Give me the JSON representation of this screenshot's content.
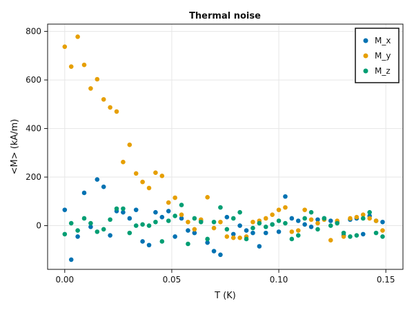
{
  "chart_data": {
    "type": "scatter",
    "title": "Thermal noise",
    "xlabel": "T (K)",
    "ylabel": "<M> (kA/m)",
    "xlim": [
      -0.008,
      0.158
    ],
    "ylim": [
      -180,
      830
    ],
    "xticks": [
      0.0,
      0.05,
      0.1,
      0.15
    ],
    "xtick_labels": [
      "0.00",
      "0.05",
      "0.10",
      "0.15"
    ],
    "yticks": [
      0,
      200,
      400,
      600,
      800
    ],
    "ytick_labels": [
      "0",
      "200",
      "400",
      "600",
      "800"
    ],
    "grid": true,
    "legend_position": "top-right",
    "x": [
      0.0,
      0.00303,
      0.00606,
      0.00909,
      0.01212,
      0.01515,
      0.01818,
      0.02121,
      0.02424,
      0.02727,
      0.0303,
      0.03333,
      0.03636,
      0.03939,
      0.04242,
      0.04545,
      0.04848,
      0.05152,
      0.05455,
      0.05758,
      0.06061,
      0.06364,
      0.06667,
      0.0697,
      0.07273,
      0.07576,
      0.07879,
      0.08182,
      0.08485,
      0.08788,
      0.09091,
      0.09394,
      0.09697,
      0.1,
      0.10303,
      0.10606,
      0.10909,
      0.11212,
      0.11515,
      0.11818,
      0.12121,
      0.12424,
      0.12727,
      0.1303,
      0.13333,
      0.13636,
      0.13939,
      0.14242,
      0.14545,
      0.14848
    ],
    "series": [
      {
        "name": "M_x",
        "color": "#0072b2",
        "values": [
          65,
          -140,
          -45,
          135,
          -5,
          190,
          160,
          -40,
          60,
          55,
          30,
          65,
          -65,
          -80,
          55,
          35,
          60,
          -45,
          30,
          -20,
          -30,
          20,
          -70,
          -105,
          -120,
          35,
          -35,
          0,
          -20,
          -30,
          -85,
          -30,
          5,
          -25,
          120,
          30,
          20,
          5,
          -5,
          25,
          30,
          20,
          15,
          -40,
          25,
          30,
          -35,
          40,
          20,
          15
        ]
      },
      {
        "name": "M_y",
        "color": "#e69f00",
        "values": [
          737,
          655,
          778,
          662,
          565,
          603,
          520,
          487,
          470,
          262,
          333,
          215,
          180,
          155,
          218,
          205,
          95,
          115,
          45,
          15,
          -15,
          25,
          117,
          -10,
          15,
          -45,
          -50,
          -50,
          -45,
          15,
          20,
          30,
          45,
          65,
          75,
          -25,
          -20,
          65,
          25,
          10,
          25,
          -60,
          20,
          -45,
          30,
          35,
          45,
          30,
          20,
          -20
        ]
      },
      {
        "name": "M_z",
        "color": "#009e73",
        "values": [
          -35,
          10,
          -20,
          30,
          10,
          -25,
          -15,
          25,
          70,
          70,
          -30,
          0,
          5,
          0,
          15,
          -65,
          20,
          40,
          85,
          -75,
          30,
          15,
          -55,
          15,
          75,
          -15,
          30,
          55,
          -55,
          -10,
          10,
          -5,
          5,
          20,
          10,
          -55,
          -40,
          30,
          55,
          -15,
          30,
          0,
          10,
          -30,
          -45,
          -40,
          30,
          55,
          -30,
          -45
        ]
      }
    ]
  }
}
